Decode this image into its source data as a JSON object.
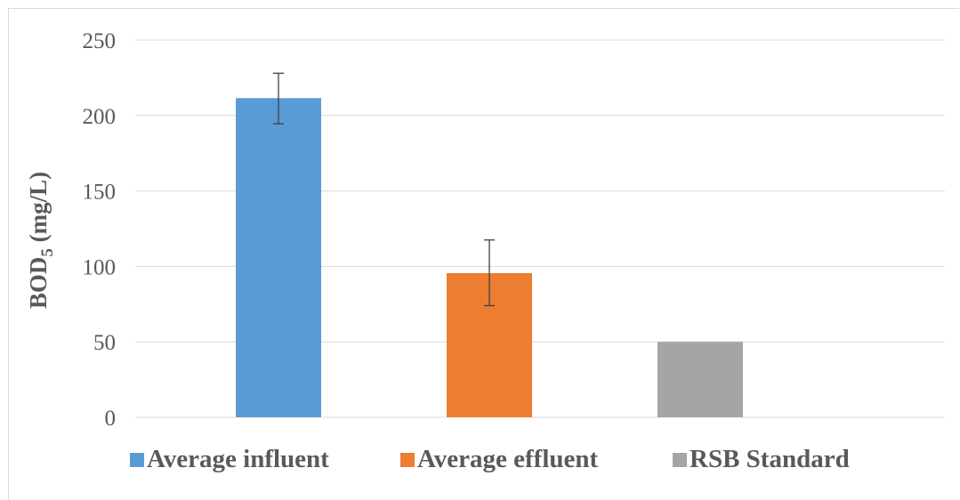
{
  "chart_data": {
    "type": "bar",
    "categories": [
      "Average influent",
      "Average effluent",
      "RSB Standard"
    ],
    "values": [
      211.5,
      95.5,
      50
    ],
    "error_bars": [
      {
        "low": 194.5,
        "high": 228
      },
      {
        "low": 74,
        "high": 117.5
      },
      null
    ],
    "colors": [
      "#5b9bd5",
      "#ed7d31",
      "#a5a5a5"
    ],
    "ylabel": {
      "main": "BOD",
      "sub": "5",
      "unit": " (mg/L)"
    },
    "ylim": [
      0,
      250
    ],
    "yticks": [
      "0",
      "50",
      "100",
      "150",
      "200",
      "250"
    ],
    "ytick_values": [
      0,
      50,
      100,
      150,
      200,
      250
    ],
    "grid": true,
    "legend": {
      "position": "bottom",
      "entries": [
        "Average influent",
        "Average effluent",
        "RSB Standard"
      ]
    }
  }
}
